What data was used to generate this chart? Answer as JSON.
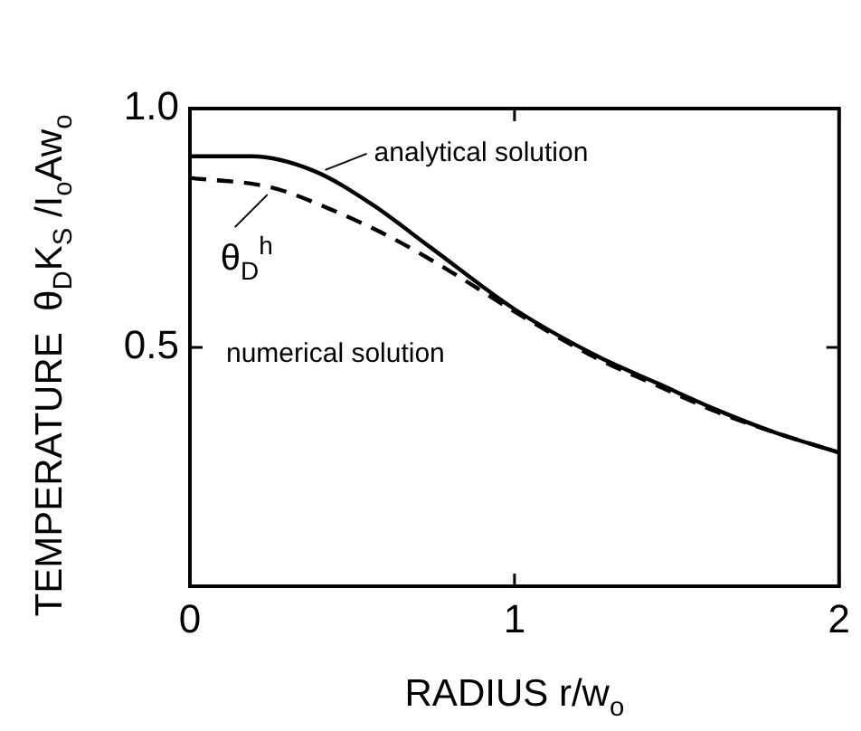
{
  "chart_data": {
    "type": "line",
    "xlabel": "RADIUS r/w$_{o}$",
    "ylabel": "TEMPERATURE  θ$_{D}$K$_{S}$ /I$_{o}$Aw$_{o}$",
    "xlim": [
      0,
      2
    ],
    "xticks": [
      0,
      1,
      2
    ],
    "ylim": [
      0,
      1
    ],
    "yticks": [
      0.5,
      {
        "value": 1,
        "label": "1.0"
      }
    ],
    "grid": false,
    "legend": false,
    "marker": "none",
    "series": [
      {
        "color": "#000000",
        "line_style": "solid",
        "x": [
          0,
          0.19,
          0.38,
          0.56,
          0.74,
          1.0,
          1.26,
          1.44,
          1.62,
          1.81,
          2.0
        ],
        "values": [
          0.9,
          0.9,
          0.87,
          0.8,
          0.71,
          0.58,
          0.48,
          0.425,
          0.37,
          0.32,
          0.28
        ]
      },
      {
        "color": "#000000",
        "line_style": "dashed",
        "x": [
          0,
          0.25,
          0.43,
          0.62,
          0.8,
          1.0,
          1.26,
          1.44,
          1.62,
          1.81,
          2.0
        ],
        "values": [
          0.855,
          0.835,
          0.79,
          0.73,
          0.66,
          0.575,
          0.475,
          0.42,
          0.366,
          0.32,
          0.28
        ]
      }
    ],
    "annotations": [
      {
        "text": "analytical solution",
        "x": 0.4,
        "y": 0.86
      },
      {
        "text": "θ$_{D}$$^{h}$",
        "x": 0.25,
        "y": 0.835
      },
      "numerical solution"
    ]
  }
}
